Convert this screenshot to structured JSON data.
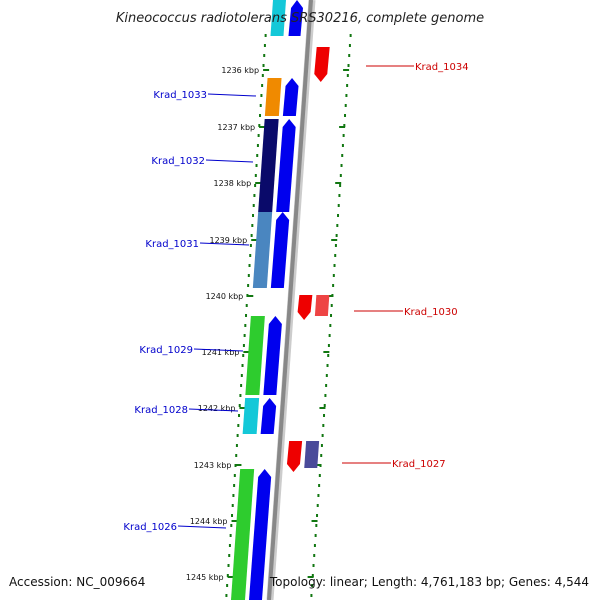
{
  "title": "Kineococcus radiotolerans SRS30216, complete genome",
  "footer": {
    "accession": "Accession: NC_009664",
    "topology": "Topology: linear; Length: 4,761,183 bp; Genes: 4,544"
  },
  "colors": {
    "forward_label": "#0000cc",
    "reverse_label": "#cc0000",
    "backbone": "#888888",
    "tick": "#117711"
  },
  "ticks": [
    "1236 kbp",
    "1237 kbp",
    "1238 kbp",
    "1239 kbp",
    "1240 kbp",
    "1241 kbp",
    "1242 kbp",
    "1243 kbp",
    "1244 kbp",
    "1245 kbp"
  ],
  "forward_genes": [
    {
      "name": "Krad_1033",
      "color": "#f08a00"
    },
    {
      "name": "Krad_1032",
      "color": "#0a0a6a"
    },
    {
      "name": "Krad_1031",
      "color": "#4a86c0"
    },
    {
      "name": "Krad_1029",
      "color": "#2ecc2e"
    },
    {
      "name": "Krad_1028",
      "color": "#14c8d8"
    },
    {
      "name": "Krad_1026",
      "color": "#2ecc2e"
    }
  ],
  "reverse_genes": [
    {
      "name": "Krad_1034",
      "color": "#dd0000"
    },
    {
      "name": "Krad_1030",
      "color": "#ee4444"
    },
    {
      "name": "Krad_1027",
      "color": "#4a4a9a"
    }
  ]
}
